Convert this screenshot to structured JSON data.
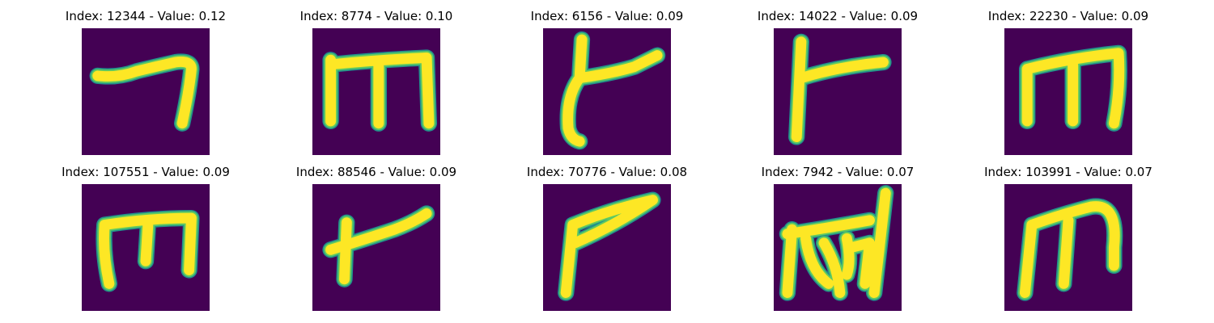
{
  "figure": {
    "colors": {
      "background": "#440154",
      "edge": "#21918c",
      "mid": "#5ec962",
      "core": "#fde725"
    },
    "samples": [
      {
        "title": "Index: 12344 - Value: 0.12"
      },
      {
        "title": "Index: 8774 - Value: 0.10"
      },
      {
        "title": "Index: 6156 - Value: 0.09"
      },
      {
        "title": "Index: 14022 - Value: 0.09"
      },
      {
        "title": "Index: 22230 - Value: 0.09"
      },
      {
        "title": "Index: 107551 - Value: 0.09"
      },
      {
        "title": "Index: 88546 - Value: 0.09"
      },
      {
        "title": "Index: 70776 - Value: 0.08"
      },
      {
        "title": "Index: 7942 - Value: 0.07"
      },
      {
        "title": "Index: 103991 - Value: 0.07"
      }
    ]
  }
}
